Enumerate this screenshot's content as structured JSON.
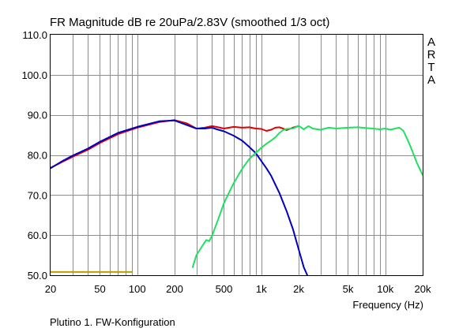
{
  "chart_data": {
    "type": "line",
    "title": "FR Magnitude dB re 20uPa/2.83V (smoothed 1/3 oct)",
    "xlabel": "Frequency (Hz)",
    "ylabel": "",
    "xscale": "log",
    "xlim": [
      20,
      20000
    ],
    "ylim": [
      50,
      110
    ],
    "x_ticks": [
      20,
      50,
      100,
      200,
      500,
      1000,
      2000,
      5000,
      10000,
      20000
    ],
    "x_tick_labels": [
      "20",
      "50",
      "100",
      "200",
      "500",
      "1k",
      "2k",
      "5k",
      "10k",
      "20k"
    ],
    "y_ticks": [
      50,
      60,
      70,
      80,
      90,
      100,
      110
    ],
    "y_tick_labels": [
      "50.0",
      "60.0",
      "70.0",
      "80.0",
      "90.0",
      "100.0",
      "110.0"
    ],
    "grid": true,
    "series": [
      {
        "name": "Red",
        "color": "#e00000",
        "points": [
          [
            20,
            76.8
          ],
          [
            25,
            78.3
          ],
          [
            30,
            79.5
          ],
          [
            40,
            81.3
          ],
          [
            50,
            83.0
          ],
          [
            70,
            85.2
          ],
          [
            100,
            86.8
          ],
          [
            150,
            88.2
          ],
          [
            200,
            88.7
          ],
          [
            250,
            87.9
          ],
          [
            300,
            86.6
          ],
          [
            350,
            86.8
          ],
          [
            400,
            87.2
          ],
          [
            450,
            86.9
          ],
          [
            500,
            86.6
          ],
          [
            600,
            87.0
          ],
          [
            700,
            86.8
          ],
          [
            800,
            86.9
          ],
          [
            900,
            86.6
          ],
          [
            1000,
            86.5
          ],
          [
            1100,
            86.0
          ],
          [
            1200,
            86.3
          ],
          [
            1300,
            86.8
          ],
          [
            1400,
            86.9
          ],
          [
            1500,
            86.6
          ],
          [
            1600,
            86.2
          ],
          [
            1800,
            86.8
          ],
          [
            2000,
            87.2
          ]
        ]
      },
      {
        "name": "Blue",
        "color": "#0000c0",
        "points": [
          [
            20,
            76.7
          ],
          [
            25,
            78.5
          ],
          [
            30,
            79.8
          ],
          [
            40,
            81.6
          ],
          [
            50,
            83.3
          ],
          [
            70,
            85.5
          ],
          [
            100,
            87.0
          ],
          [
            150,
            88.4
          ],
          [
            200,
            88.6
          ],
          [
            250,
            87.5
          ],
          [
            300,
            86.6
          ],
          [
            350,
            86.6
          ],
          [
            400,
            86.8
          ],
          [
            450,
            86.3
          ],
          [
            500,
            85.9
          ],
          [
            600,
            84.8
          ],
          [
            700,
            83.6
          ],
          [
            800,
            82.0
          ],
          [
            900,
            80.5
          ],
          [
            1000,
            78.5
          ],
          [
            1100,
            76.7
          ],
          [
            1200,
            74.8
          ],
          [
            1400,
            70.5
          ],
          [
            1600,
            66.0
          ],
          [
            1800,
            61.5
          ],
          [
            2000,
            56.5
          ],
          [
            2200,
            52.0
          ],
          [
            2350,
            50.0
          ]
        ]
      },
      {
        "name": "Green",
        "color": "#20e060",
        "points": [
          [
            280,
            52.0
          ],
          [
            300,
            55.0
          ],
          [
            330,
            57.0
          ],
          [
            360,
            58.8
          ],
          [
            380,
            58.5
          ],
          [
            400,
            59.8
          ],
          [
            450,
            64.0
          ],
          [
            500,
            68.0
          ],
          [
            600,
            73.0
          ],
          [
            700,
            76.5
          ],
          [
            800,
            79.0
          ],
          [
            900,
            80.5
          ],
          [
            1000,
            81.8
          ],
          [
            1100,
            82.8
          ],
          [
            1200,
            83.6
          ],
          [
            1300,
            84.4
          ],
          [
            1400,
            85.5
          ],
          [
            1500,
            86.2
          ],
          [
            1600,
            86.5
          ],
          [
            1800,
            86.6
          ],
          [
            2000,
            87.3
          ],
          [
            2200,
            86.4
          ],
          [
            2400,
            87.2
          ],
          [
            2600,
            86.6
          ],
          [
            3000,
            86.3
          ],
          [
            3500,
            86.8
          ],
          [
            4000,
            86.6
          ],
          [
            5000,
            86.8
          ],
          [
            6000,
            86.9
          ],
          [
            7000,
            86.7
          ],
          [
            8000,
            86.6
          ],
          [
            9000,
            86.4
          ],
          [
            10000,
            86.6
          ],
          [
            11000,
            86.3
          ],
          [
            12000,
            86.6
          ],
          [
            13000,
            86.8
          ],
          [
            14000,
            86.0
          ],
          [
            15000,
            84.0
          ],
          [
            16000,
            82.0
          ],
          [
            18000,
            78.0
          ],
          [
            20000,
            75.0
          ]
        ]
      },
      {
        "name": "Yellow",
        "color": "#b8a000",
        "points": [
          [
            20,
            50.8
          ],
          [
            90,
            50.8
          ]
        ]
      }
    ],
    "side_label_letters": [
      "A",
      "R",
      "T",
      "A"
    ],
    "footnote": "Plutino 1. FW-Konfiguration"
  }
}
